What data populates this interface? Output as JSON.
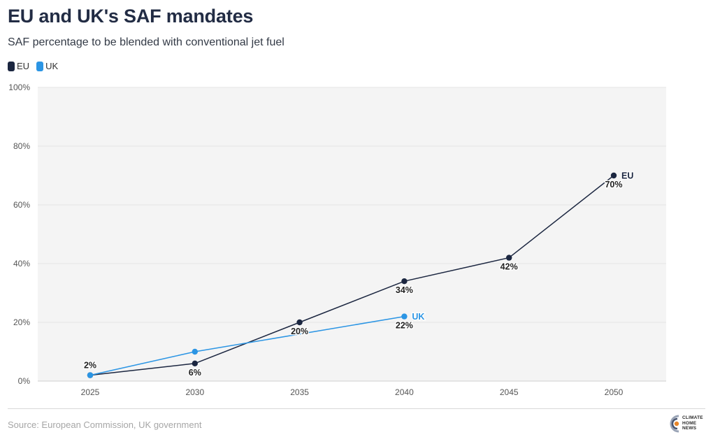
{
  "header": {
    "title": "EU and UK's SAF mandates",
    "subtitle": "SAF percentage to be blended with conventional jet fuel"
  },
  "legend": [
    {
      "name": "EU",
      "color": "#1b2640"
    },
    {
      "name": "UK",
      "color": "#2b95e4"
    }
  ],
  "chart_data": {
    "type": "line",
    "title": "EU and UK's SAF mandates",
    "subtitle": "SAF percentage to be blended with conventional jet fuel",
    "xlabel": "",
    "ylabel": "",
    "x": [
      2025,
      2030,
      2035,
      2040,
      2045,
      2050
    ],
    "x_tick_labels": [
      "2025",
      "2030",
      "2035",
      "2040",
      "2045",
      "2050"
    ],
    "ylim": [
      0,
      100
    ],
    "y_ticks": [
      0,
      20,
      40,
      60,
      80,
      100
    ],
    "y_tick_labels": [
      "0%",
      "20%",
      "40%",
      "60%",
      "80%",
      "100%"
    ],
    "grid": true,
    "series": [
      {
        "name": "EU",
        "color": "#1b2640",
        "x": [
          2025,
          2030,
          2035,
          2040,
          2045,
          2050
        ],
        "values": [
          2,
          6,
          20,
          34,
          42,
          70
        ],
        "labels": [
          "",
          "6%",
          "20%",
          "34%",
          "42%",
          "70%"
        ],
        "end_label": "EU"
      },
      {
        "name": "UK",
        "color": "#2b95e4",
        "x": [
          2025,
          2030,
          2040
        ],
        "values": [
          2,
          10,
          22
        ],
        "labels": [
          "2%",
          "",
          "22%"
        ],
        "end_label": "UK"
      }
    ]
  },
  "footer": {
    "source": "Source: European Commission, UK government",
    "logo_lines": [
      "CLIMATE",
      "HOME",
      "NEWS"
    ]
  }
}
